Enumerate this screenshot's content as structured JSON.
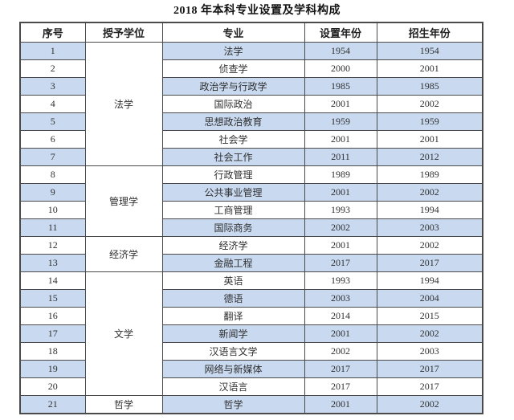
{
  "page_title": "2018 年本科专业设置及学科构成",
  "table": {
    "columns": [
      "序号",
      "授予学位",
      "专业",
      "设置年份",
      "招生年份"
    ],
    "groups": [
      {
        "degree": "法学",
        "majors": [
          {
            "no": "1",
            "major": "法学",
            "setup_year": "1954",
            "enroll_year": "1954"
          },
          {
            "no": "2",
            "major": "侦查学",
            "setup_year": "2000",
            "enroll_year": "2001"
          },
          {
            "no": "3",
            "major": "政治学与行政学",
            "setup_year": "1985",
            "enroll_year": "1985"
          },
          {
            "no": "4",
            "major": "国际政治",
            "setup_year": "2001",
            "enroll_year": "2002"
          },
          {
            "no": "5",
            "major": "思想政治教育",
            "setup_year": "1959",
            "enroll_year": "1959"
          },
          {
            "no": "6",
            "major": "社会学",
            "setup_year": "2001",
            "enroll_year": "2001"
          },
          {
            "no": "7",
            "major": "社会工作",
            "setup_year": "2011",
            "enroll_year": "2012"
          }
        ]
      },
      {
        "degree": "管理学",
        "majors": [
          {
            "no": "8",
            "major": "行政管理",
            "setup_year": "1989",
            "enroll_year": "1989"
          },
          {
            "no": "9",
            "major": "公共事业管理",
            "setup_year": "2001",
            "enroll_year": "2002"
          },
          {
            "no": "10",
            "major": "工商管理",
            "setup_year": "1993",
            "enroll_year": "1994"
          },
          {
            "no": "11",
            "major": "国际商务",
            "setup_year": "2002",
            "enroll_year": "2003"
          }
        ]
      },
      {
        "degree": "经济学",
        "majors": [
          {
            "no": "12",
            "major": "经济学",
            "setup_year": "2001",
            "enroll_year": "2002"
          },
          {
            "no": "13",
            "major": "金融工程",
            "setup_year": "2017",
            "enroll_year": "2017"
          }
        ]
      },
      {
        "degree": "文学",
        "majors": [
          {
            "no": "14",
            "major": "英语",
            "setup_year": "1993",
            "enroll_year": "1994"
          },
          {
            "no": "15",
            "major": "德语",
            "setup_year": "2003",
            "enroll_year": "2004"
          },
          {
            "no": "16",
            "major": "翻译",
            "setup_year": "2014",
            "enroll_year": "2015"
          },
          {
            "no": "17",
            "major": "新闻学",
            "setup_year": "2001",
            "enroll_year": "2002"
          },
          {
            "no": "18",
            "major": "汉语言文学",
            "setup_year": "2002",
            "enroll_year": "2003"
          },
          {
            "no": "19",
            "major": "网络与新媒体",
            "setup_year": "2017",
            "enroll_year": "2017"
          },
          {
            "no": "20",
            "major": "汉语言",
            "setup_year": "2017",
            "enroll_year": "2017"
          }
        ]
      },
      {
        "degree": "哲学",
        "majors": [
          {
            "no": "21",
            "major": "哲学",
            "setup_year": "2001",
            "enroll_year": "2002"
          }
        ]
      }
    ]
  },
  "colors": {
    "stripe_blue": "#c8d9f0",
    "stripe_white": "#ffffff",
    "border": "#4a4a4a",
    "text": "#303030"
  }
}
